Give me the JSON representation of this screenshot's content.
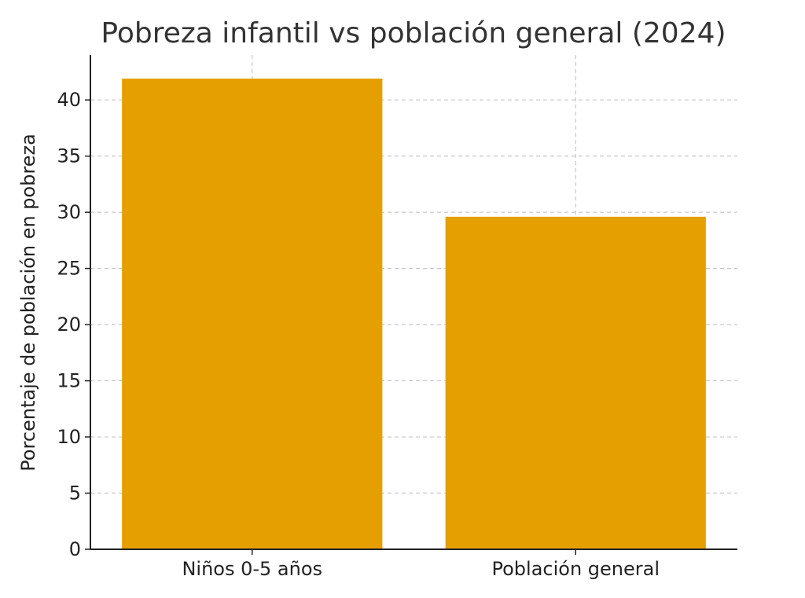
{
  "colors": {
    "bar": "#E69F00",
    "text": "#333333"
  },
  "chart_data": {
    "type": "bar",
    "title": "Pobreza infantil vs población general (2024)",
    "xlabel": "",
    "ylabel": "Porcentaje de población en pobreza",
    "categories": [
      "Niños 0-5 años",
      "Población general"
    ],
    "values": [
      41.9,
      29.6
    ],
    "ylim": [
      0,
      44
    ],
    "yticks": [
      0,
      5,
      10,
      15,
      20,
      25,
      30,
      35,
      40
    ],
    "grid": true
  }
}
